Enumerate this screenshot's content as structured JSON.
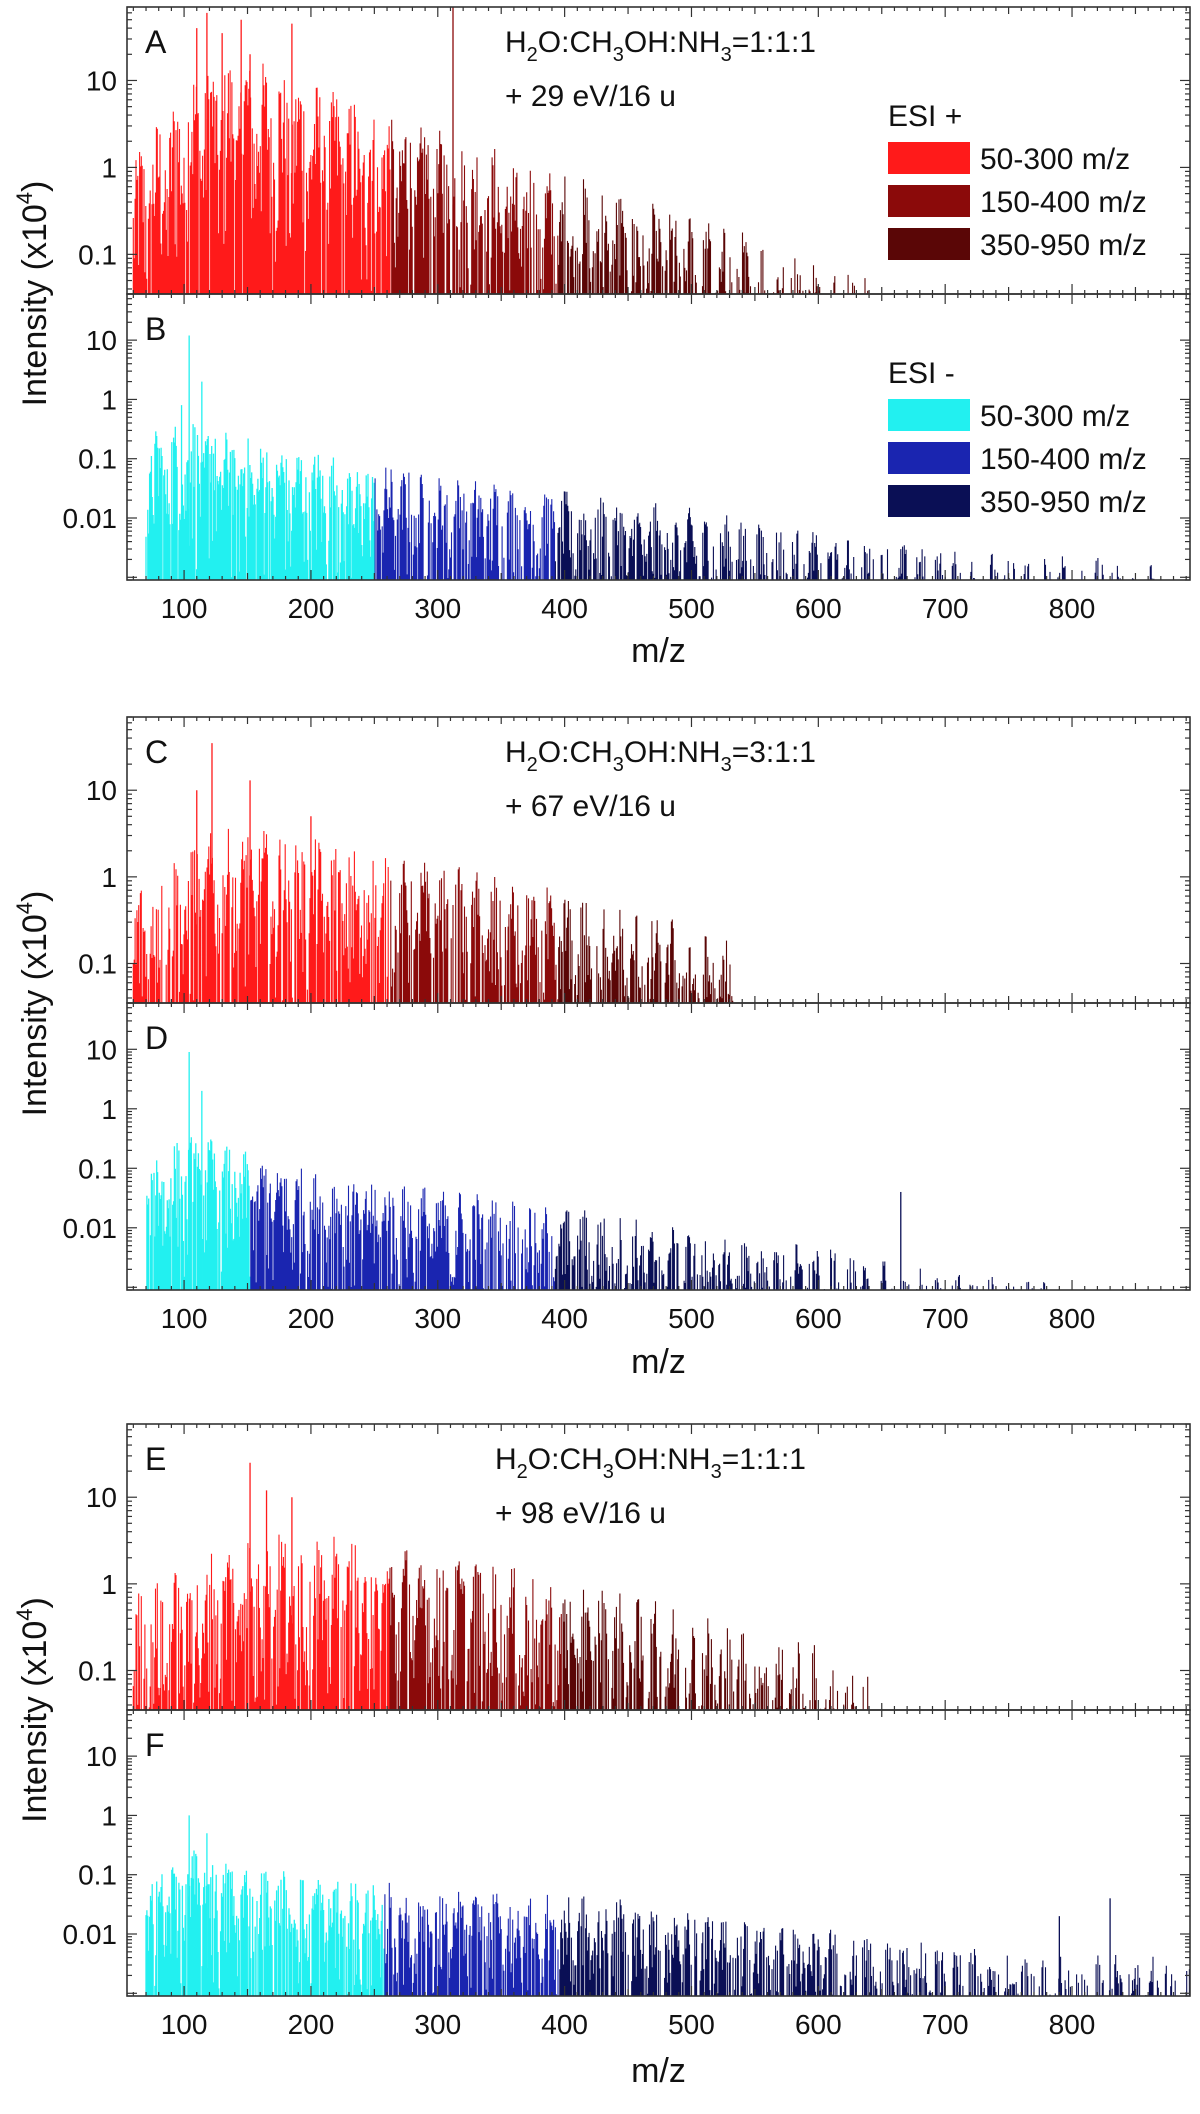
{
  "chart_data": {
    "type": "bar",
    "x_label": "m/z",
    "y_label": "Intensity (x10",
    "y_label_sup": "4",
    "y_label_end": ")",
    "x_ticks": [
      100,
      200,
      300,
      400,
      500,
      600,
      700,
      800
    ],
    "x_range": [
      55,
      893
    ],
    "figures": [
      {
        "id": "AB",
        "annotation": {
          "prefix": "H",
          "s1": "2",
          "mid1": "O:CH",
          "s2": "3",
          "mid2": "OH:NH",
          "s3": "3",
          "suffix": "=1:1:1",
          "line2": "+ 29 eV/16 u"
        },
        "panels": [
          {
            "letter": "A",
            "polarity": "ESI +",
            "ylim": [
              0.035,
              70
            ],
            "yticks": [
              0.1,
              1,
              10
            ],
            "ytick_labels": [
              "0.1",
              "1",
              "10"
            ],
            "legend": {
              "title": "ESI +",
              "entries": [
                "50-300 m/z",
                "150-400 m/z",
                "350-950 m/z"
              ],
              "colors": [
                "#ff1a1a",
                "#8b0a0a",
                "#5a0606"
              ]
            },
            "envelope": [
              [
                60,
                1.5
              ],
              [
                110,
                15
              ],
              [
                150,
                20
              ],
              [
                200,
                10
              ],
              [
                300,
                3
              ],
              [
                400,
                0.9
              ],
              [
                500,
                0.3
              ],
              [
                600,
                0.1
              ],
              [
                645,
                0.06
              ]
            ],
            "segments": [
              [
                60,
                263
              ],
              [
                263,
                395
              ],
              [
                395,
                645
              ]
            ],
            "spikes": [
              [
                110,
                40
              ],
              [
                118,
                60
              ],
              [
                130,
                35
              ],
              [
                145,
                50
              ],
              [
                152,
                20
              ],
              [
                185,
                45
              ],
              [
                312,
                70
              ]
            ]
          },
          {
            "letter": "B",
            "polarity": "ESI -",
            "ylim": [
              0.0009,
              60
            ],
            "yticks": [
              0.01,
              0.1,
              1,
              10
            ],
            "ytick_labels": [
              "0.01",
              "0.1",
              "1",
              "10"
            ],
            "legend": {
              "title": "ESI -",
              "entries": [
                "50-300 m/z",
                "150-400 m/z",
                "350-950 m/z"
              ],
              "colors": [
                "#22f0f0",
                "#1a25b0",
                "#0a0f55"
              ]
            },
            "envelope": [
              [
                70,
                0.3
              ],
              [
                110,
                0.5
              ],
              [
                150,
                0.25
              ],
              [
                200,
                0.15
              ],
              [
                300,
                0.06
              ],
              [
                400,
                0.03
              ],
              [
                500,
                0.015
              ],
              [
                600,
                0.006
              ],
              [
                700,
                0.003
              ],
              [
                865,
                0.002
              ]
            ],
            "segments": [
              [
                70,
                250
              ],
              [
                250,
                392
              ],
              [
                392,
                865
              ]
            ],
            "spikes": [
              [
                104,
                12
              ],
              [
                114,
                2
              ],
              [
                98,
                0.8
              ]
            ]
          }
        ]
      },
      {
        "id": "CD",
        "annotation": {
          "prefix": "H",
          "s1": "2",
          "mid1": "O:CH",
          "s2": "3",
          "mid2": "OH:NH",
          "s3": "3",
          "suffix": "=3:1:1",
          "line2": "+ 67 eV/16 u"
        },
        "panels": [
          {
            "letter": "C",
            "polarity": "ESI +",
            "ylim": [
              0.035,
              70
            ],
            "yticks": [
              0.1,
              1,
              10
            ],
            "ytick_labels": [
              "0.1",
              "1",
              "10"
            ],
            "legend": null,
            "envelope": [
              [
                60,
                0.8
              ],
              [
                110,
                3
              ],
              [
                150,
                4
              ],
              [
                200,
                3
              ],
              [
                300,
                1.5
              ],
              [
                400,
                0.7
              ],
              [
                500,
                0.3
              ],
              [
                535,
                0.2
              ]
            ],
            "segments": [
              [
                60,
                262
              ],
              [
                262,
                395
              ],
              [
                395,
                535
              ]
            ],
            "spikes": [
              [
                122,
                35
              ],
              [
                152,
                13
              ],
              [
                110,
                10
              ],
              [
                200,
                5
              ]
            ]
          },
          {
            "letter": "D",
            "polarity": "ESI -",
            "ylim": [
              0.0009,
              60
            ],
            "yticks": [
              0.01,
              0.1,
              1,
              10
            ],
            "ytick_labels": [
              "0.01",
              "0.1",
              "1",
              "10"
            ],
            "legend": null,
            "envelope": [
              [
                70,
                0.2
              ],
              [
                110,
                0.4
              ],
              [
                150,
                0.2
              ],
              [
                200,
                0.1
              ],
              [
                300,
                0.05
              ],
              [
                400,
                0.025
              ],
              [
                500,
                0.01
              ],
              [
                600,
                0.005
              ],
              [
                700,
                0.002
              ],
              [
                790,
                0.0015
              ]
            ],
            "segments": [
              [
                70,
                152
              ],
              [
                152,
                392
              ],
              [
                392,
                790
              ]
            ],
            "spikes": [
              [
                104,
                9
              ],
              [
                114,
                2
              ],
              [
                665,
                0.04
              ]
            ]
          }
        ]
      },
      {
        "id": "EF",
        "annotation": {
          "prefix": "H",
          "s1": "2",
          "mid1": "O:CH",
          "s2": "3",
          "mid2": "OH:NH",
          "s3": "3",
          "suffix": "=1:1:1",
          "line2": "+ 98 eV/16 u"
        },
        "panels": [
          {
            "letter": "E",
            "polarity": "ESI +",
            "ylim": [
              0.035,
              70
            ],
            "yticks": [
              0.1,
              1,
              10
            ],
            "ytick_labels": [
              "0.1",
              "1",
              "10"
            ],
            "legend": null,
            "envelope": [
              [
                60,
                0.8
              ],
              [
                110,
                2
              ],
              [
                160,
                5
              ],
              [
                200,
                4
              ],
              [
                300,
                2.5
              ],
              [
                400,
                1.2
              ],
              [
                500,
                0.5
              ],
              [
                600,
                0.2
              ],
              [
                640,
                0.1
              ]
            ],
            "segments": [
              [
                60,
                262
              ],
              [
                262,
                398
              ],
              [
                398,
                640
              ]
            ],
            "spikes": [
              [
                152,
                25
              ],
              [
                165,
                12
              ],
              [
                185,
                10
              ]
            ]
          },
          {
            "letter": "F",
            "polarity": "ESI -",
            "ylim": [
              0.0009,
              60
            ],
            "yticks": [
              0.01,
              0.1,
              1,
              10
            ],
            "ytick_labels": [
              "0.01",
              "0.1",
              "1",
              "10"
            ],
            "legend": null,
            "envelope": [
              [
                70,
                0.15
              ],
              [
                110,
                0.3
              ],
              [
                150,
                0.15
              ],
              [
                200,
                0.12
              ],
              [
                300,
                0.06
              ],
              [
                400,
                0.05
              ],
              [
                500,
                0.03
              ],
              [
                600,
                0.015
              ],
              [
                700,
                0.007
              ],
              [
                800,
                0.005
              ],
              [
                893,
                0.004
              ]
            ],
            "segments": [
              [
                70,
                258
              ],
              [
                258,
                395
              ],
              [
                395,
                893
              ]
            ],
            "spikes": [
              [
                104,
                1
              ],
              [
                118,
                0.5
              ],
              [
                830,
                0.04
              ],
              [
                790,
                0.02
              ]
            ]
          }
        ]
      }
    ]
  }
}
